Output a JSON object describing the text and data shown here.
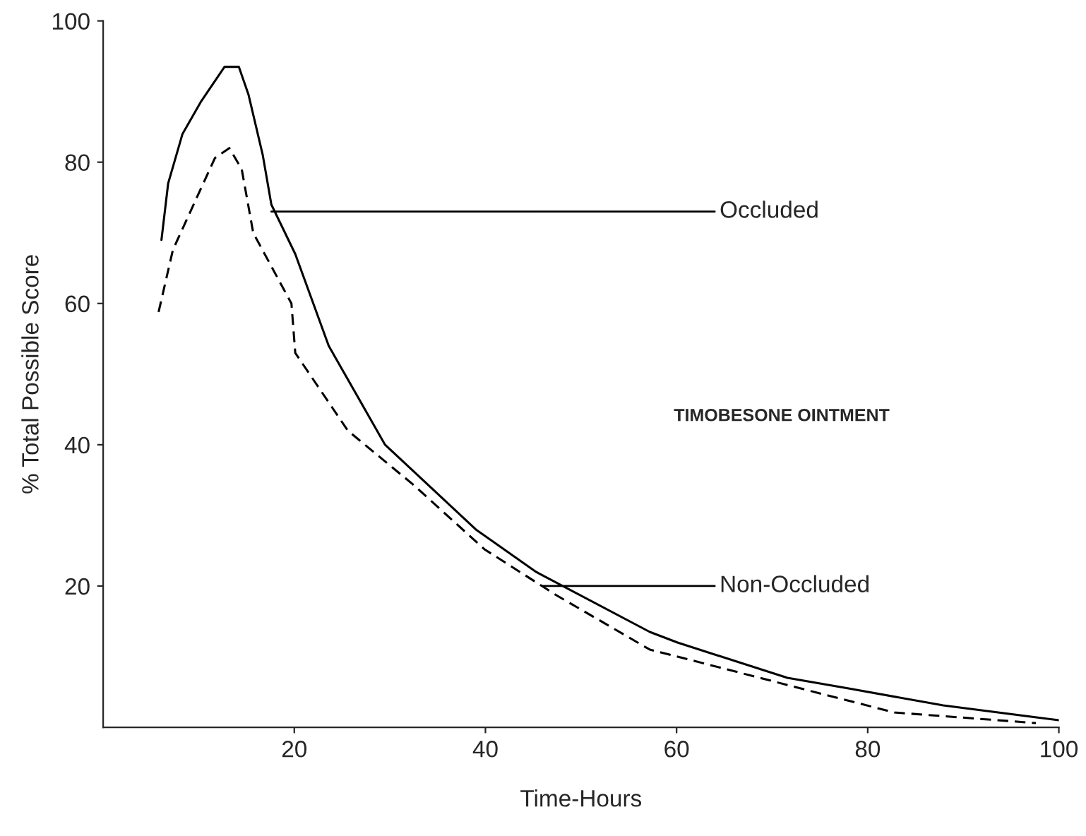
{
  "chart_data": {
    "type": "line",
    "xlabel": "Time-Hours",
    "ylabel": "% Total Possible Score",
    "xlim": [
      0,
      100
    ],
    "ylim": [
      0,
      100
    ],
    "xticks": [
      20,
      40,
      60,
      80,
      100
    ],
    "yticks": [
      20,
      40,
      60,
      80,
      100
    ],
    "grid": false,
    "legend": false,
    "series": [
      {
        "color": "#000000",
        "line_style": "solid",
        "x": [
          6.1,
          6.8,
          8.3,
          10.2,
          12.7,
          14.2,
          15.2,
          16.7,
          17.6,
          20.1,
          23.6,
          29.5,
          39,
          45.3,
          57.2,
          60.1,
          71.6,
          78,
          87.9,
          100
        ],
        "values": [
          69,
          77,
          84,
          88.5,
          93.5,
          93.5,
          89.6,
          81,
          74,
          67,
          54,
          40,
          28,
          22,
          13.5,
          12,
          7,
          5.5,
          3.1,
          1
        ]
      },
      {
        "color": "#000000",
        "line_style": "dashed",
        "x": [
          5.8,
          7.3,
          9.8,
          11.7,
          13.2,
          14.5,
          15.7,
          19.7,
          20.1,
          25.6,
          32.4,
          39.9,
          47.3,
          57.2,
          63,
          73,
          82.8,
          97.6
        ],
        "values": [
          58.8,
          67.6,
          75,
          80.6,
          82,
          79,
          70,
          60,
          53,
          42,
          34.4,
          25.2,
          18.8,
          11,
          9,
          5.5,
          2.1,
          0.6
        ]
      }
    ],
    "annotations": [
      {
        "text": "Occluded",
        "x": 17.6,
        "y": 73
      },
      {
        "text": "Non-Occluded",
        "x": 46,
        "y": 20
      },
      "TIMOBESONE OINTMENT"
    ]
  }
}
